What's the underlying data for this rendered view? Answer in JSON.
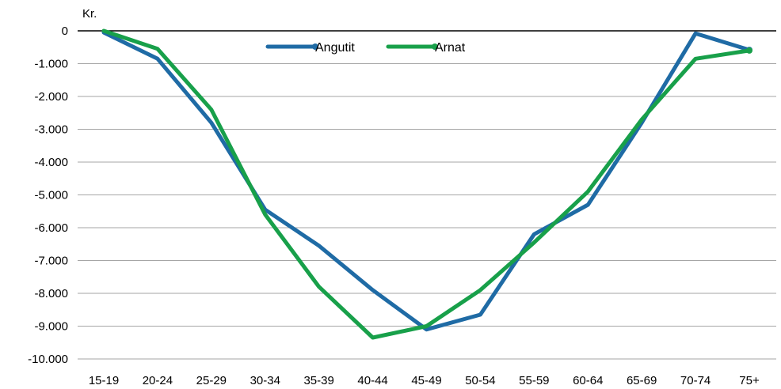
{
  "chart_data": {
    "type": "line",
    "title": "",
    "xlabel": "",
    "ylabel": "Kr.",
    "categories": [
      "15-19",
      "20-24",
      "25-29",
      "30-34",
      "35-39",
      "40-44",
      "45-49",
      "50-54",
      "55-59",
      "60-64",
      "65-69",
      "70-74",
      "75+"
    ],
    "ylim": [
      -10000,
      0
    ],
    "yticks": [
      0,
      -1000,
      -2000,
      -3000,
      -4000,
      -5000,
      -6000,
      -7000,
      -8000,
      -9000,
      -10000
    ],
    "ytick_labels": [
      "0",
      "-1.000",
      "-2.000",
      "-3.000",
      "-4.000",
      "-5.000",
      "-6.000",
      "-7.000",
      "-8.000",
      "-9.000",
      "-10.000"
    ],
    "grid": true,
    "legend_position": "top-center",
    "series": [
      {
        "name": "Angutit",
        "color": "#1f6ba5",
        "values": [
          -50,
          -850,
          -2800,
          -5450,
          -6550,
          -7900,
          -9100,
          -8650,
          -6200,
          -5300,
          -2800,
          -80,
          -580
        ]
      },
      {
        "name": "Arnat",
        "color": "#18a04a",
        "values": [
          0,
          -550,
          -2400,
          -5600,
          -7800,
          -9350,
          -9000,
          -7900,
          -6450,
          -4900,
          -2700,
          -850,
          -600
        ]
      }
    ]
  }
}
